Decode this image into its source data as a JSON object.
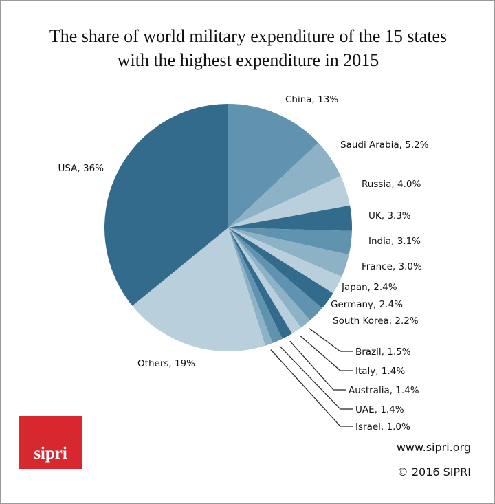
{
  "chart_data": {
    "type": "pie",
    "title": "The share of world military expenditure of the 15 states with the highest expenditure in 2015",
    "title_lines": [
      "The share of world military expenditure of the 15 states",
      "with the highest expenditure in 2015"
    ],
    "start": "12 o'clock, clockwise",
    "slices": [
      {
        "name": "China",
        "value": 13,
        "label": "China, 13%",
        "color": "#5f93b0"
      },
      {
        "name": "Saudi Arabia",
        "value": 5.2,
        "label": "Saudi Arabia, 5.2%",
        "color": "#8db2c6"
      },
      {
        "name": "Russia",
        "value": 4.0,
        "label": "Russia, 4.0%",
        "color": "#b9cfdb"
      },
      {
        "name": "UK",
        "value": 3.3,
        "label": "UK, 3.3%",
        "color": "#336b8c"
      },
      {
        "name": "India",
        "value": 3.1,
        "label": "India, 3.1%",
        "color": "#5f93b0"
      },
      {
        "name": "France",
        "value": 3.0,
        "label": "France, 3.0%",
        "color": "#8db2c6"
      },
      {
        "name": "Japan",
        "value": 2.4,
        "label": "Japan, 2.4%",
        "color": "#b9cfdb"
      },
      {
        "name": "Germany",
        "value": 2.4,
        "label": "Germany, 2.4%",
        "color": "#336b8c"
      },
      {
        "name": "South Korea",
        "value": 2.2,
        "label": "South Korea, 2.2%",
        "color": "#5f93b0"
      },
      {
        "name": "Brazil",
        "value": 1.5,
        "label": "Brazil, 1.5%",
        "color": "#8db2c6"
      },
      {
        "name": "Italy",
        "value": 1.4,
        "label": "Italy, 1.4%",
        "color": "#b9cfdb"
      },
      {
        "name": "Australia",
        "value": 1.4,
        "label": "Australia, 1.4%",
        "color": "#336b8c"
      },
      {
        "name": "UAE",
        "value": 1.4,
        "label": "UAE, 1.4%",
        "color": "#5f93b0"
      },
      {
        "name": "Israel",
        "value": 1.0,
        "label": "Israel, 1.0%",
        "color": "#8db2c6"
      },
      {
        "name": "Others",
        "value": 19,
        "label": "Others, 19%",
        "color": "#b9cfdb"
      },
      {
        "name": "USA",
        "value": 36,
        "label": "USA, 36%",
        "color": "#336b8c"
      }
    ]
  },
  "footer": {
    "logo": "sipri",
    "url": "www.sipri.org",
    "copyright": "© 2016 SIPRI"
  }
}
